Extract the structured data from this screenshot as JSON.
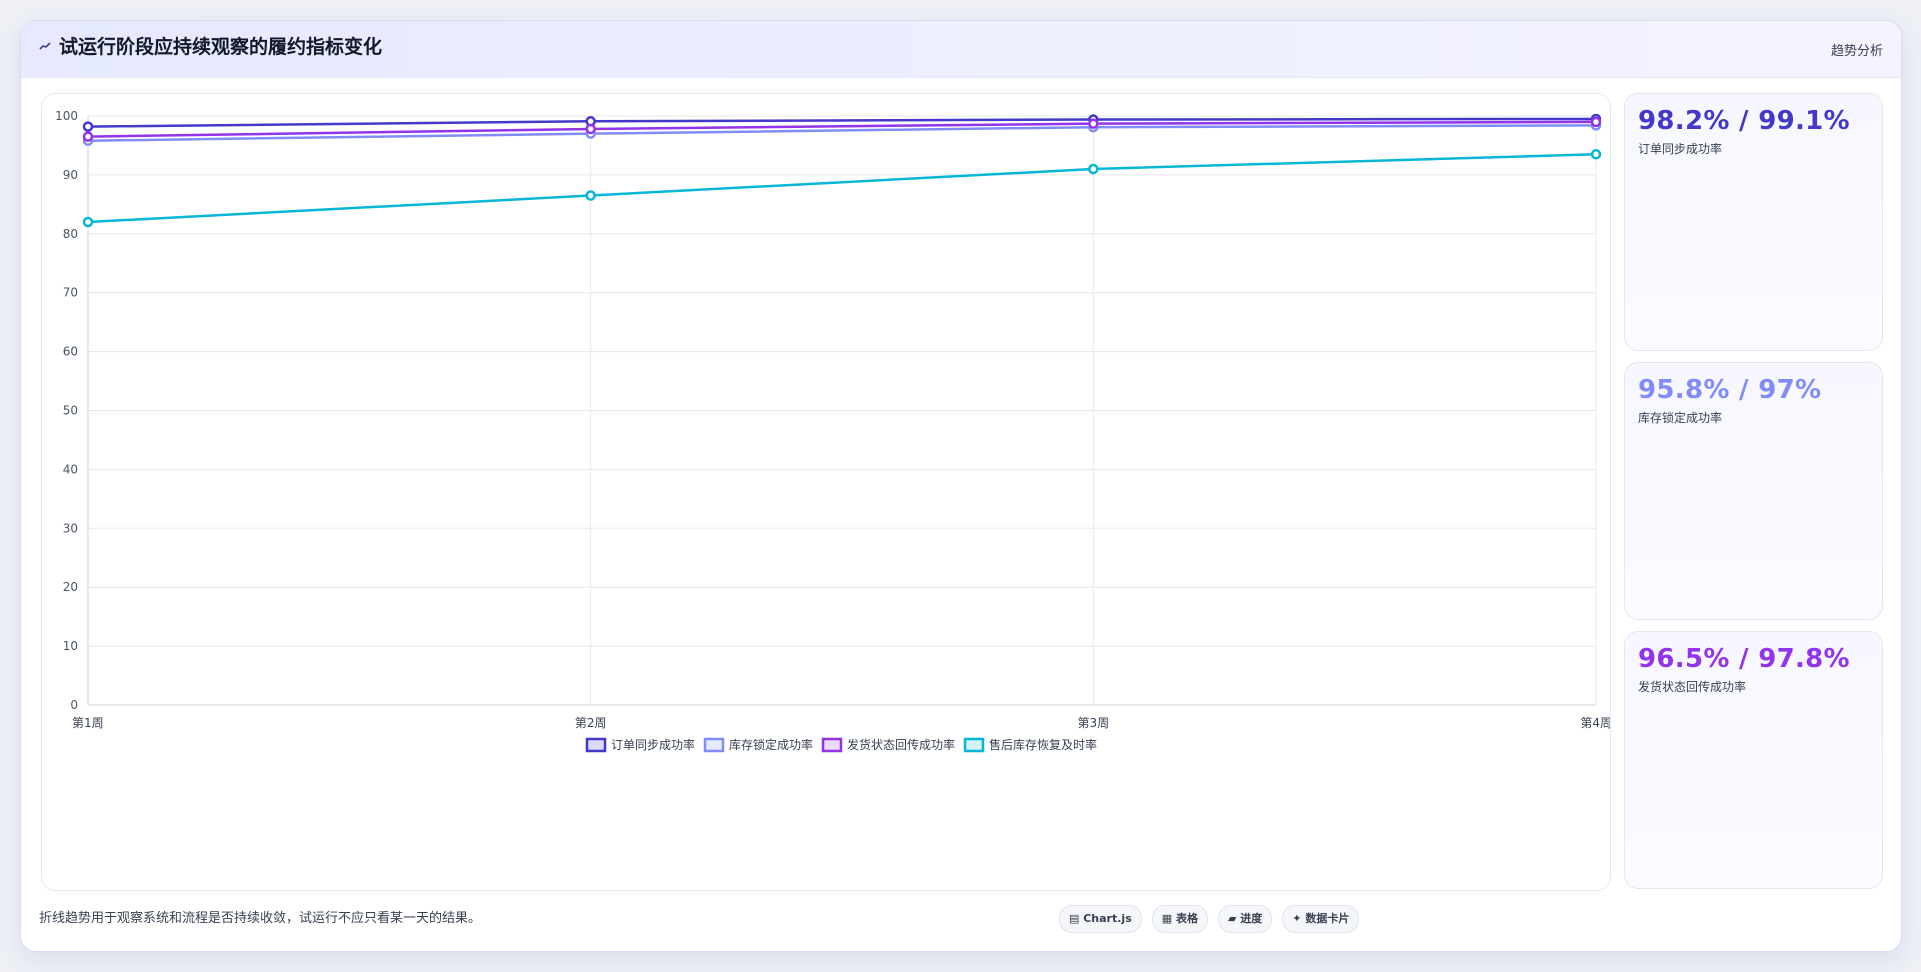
{
  "header": {
    "icon": "chart-line-icon",
    "title": "试运行阶段应持续观察的履约指标变化",
    "tag": "趋势分析"
  },
  "chart_data": {
    "type": "line",
    "categories": [
      "第1周",
      "第2周",
      "第3周",
      "第4周"
    ],
    "ylim": [
      0,
      100
    ],
    "yticks": [
      0,
      10,
      20,
      30,
      40,
      50,
      60,
      70,
      80,
      90,
      100
    ],
    "grid": true,
    "legend_position": "bottom",
    "series": [
      {
        "name": "订单同步成功率",
        "color": "#4338ca",
        "values": [
          98.2,
          99.1,
          99.4,
          99.5
        ]
      },
      {
        "name": "库存锁定成功率",
        "color": "#818cf8",
        "values": [
          95.8,
          97.0,
          98.1,
          98.4
        ]
      },
      {
        "name": "发货状态回传成功率",
        "color": "#9333ea",
        "values": [
          96.5,
          97.8,
          98.7,
          99.0
        ]
      },
      {
        "name": "售后库存恢复及时率",
        "color": "#06b6d4",
        "values": [
          82.0,
          86.5,
          91.0,
          93.5
        ]
      }
    ]
  },
  "side_cards": [
    {
      "value": "98.2% / 99.1%",
      "label": "订单同步成功率",
      "color": "#4338ca"
    },
    {
      "value": "95.8% / 97%",
      "label": "库存锁定成功率",
      "color": "#818cf8"
    },
    {
      "value": "96.5% / 97.8%",
      "label": "发货状态回传成功率",
      "color": "#9333ea"
    }
  ],
  "footer": {
    "note": "折线趋势用于观察系统和流程是否持续收敛，试运行不应只看某一天的结果。",
    "pills": [
      {
        "icon": "chart-icon",
        "label": "Chart.js"
      },
      {
        "icon": "table-icon",
        "label": "表格"
      },
      {
        "icon": "progress-icon",
        "label": "进度"
      },
      {
        "icon": "card-icon",
        "label": "数据卡片"
      }
    ]
  }
}
